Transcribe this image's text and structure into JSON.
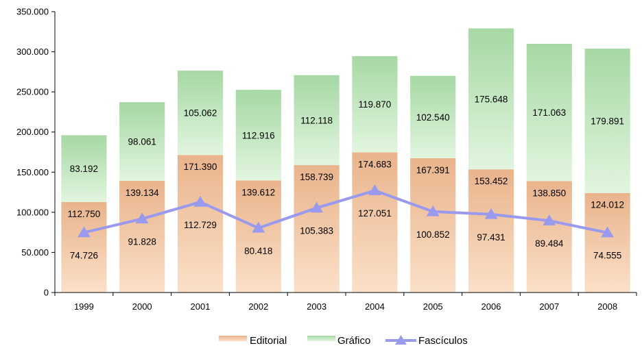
{
  "chart_data": {
    "type": "bar",
    "stacked": true,
    "categories": [
      "1999",
      "2000",
      "2001",
      "2002",
      "2003",
      "2004",
      "2005",
      "2006",
      "2007",
      "2008"
    ],
    "series": [
      {
        "name": "Editorial",
        "type": "bar",
        "values": [
          112750,
          139134,
          171390,
          139612,
          158739,
          174683,
          167391,
          153452,
          138850,
          124012
        ],
        "labels": [
          "112.750",
          "139.134",
          "171.390",
          "139.612",
          "158.739",
          "174.683",
          "167.391",
          "153.452",
          "138.850",
          "124.012"
        ],
        "color_top": "#e9b48c",
        "color_bottom": "#f8d8bc"
      },
      {
        "name": "Gráfico",
        "type": "bar",
        "values": [
          83192,
          98061,
          105062,
          112916,
          112118,
          119870,
          102540,
          175648,
          171063,
          179891
        ],
        "labels": [
          "83.192",
          "98.061",
          "105.062",
          "112.916",
          "112.118",
          "119.870",
          "102.540",
          "175.648",
          "171.063",
          "179.891"
        ],
        "color_top": "#94cf94",
        "color_bottom": "#d9f1d6"
      },
      {
        "name": "Fascículos",
        "type": "line",
        "values": [
          74726,
          91828,
          112729,
          80418,
          105383,
          127051,
          100852,
          97431,
          89484,
          74555
        ],
        "labels": [
          "74.726",
          "91.828",
          "112.729",
          "80.418",
          "105.383",
          "127.051",
          "100.852",
          "97.431",
          "89.484",
          "74.555"
        ],
        "color": "#9999ee"
      }
    ],
    "ylim": [
      0,
      350000
    ],
    "yticks": [
      0,
      50000,
      100000,
      150000,
      200000,
      250000,
      300000,
      350000
    ],
    "ytick_labels": [
      "0",
      "50.000",
      "100.000",
      "150.000",
      "200.000",
      "250.000",
      "300.000",
      "350.000"
    ],
    "legend_position": "bottom",
    "grid": false,
    "title": "",
    "xlabel": "",
    "ylabel": ""
  }
}
